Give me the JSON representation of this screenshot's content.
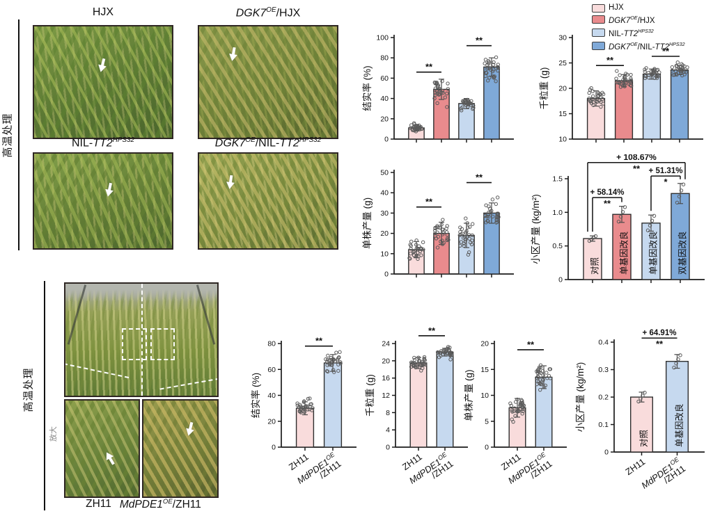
{
  "colors": {
    "pink_light": "#f9dcdc",
    "pink": "#e98b8d",
    "blue_light": "#c6d9ef",
    "blue": "#7fa9d8",
    "bar_border": "#2f2f2f",
    "axis": "#1a1a1a",
    "point_stroke": "#5a5a5a"
  },
  "legend": {
    "items": [
      {
        "color_key": "pink_light",
        "label": [
          {
            "t": "HJX"
          }
        ]
      },
      {
        "color_key": "pink",
        "label": [
          {
            "t": "DGK7",
            "i": 1
          },
          {
            "t": "OE",
            "i": 1,
            "s": 1
          },
          {
            "t": "/HJX"
          }
        ]
      },
      {
        "color_key": "blue_light",
        "label": [
          {
            "t": "NIL-"
          },
          {
            "t": "TT2",
            "i": 1
          },
          {
            "t": "HPS32",
            "i": 1,
            "s": 1
          }
        ]
      },
      {
        "color_key": "blue",
        "label": [
          {
            "t": "DGK7",
            "i": 1
          },
          {
            "t": "OE",
            "i": 1,
            "s": 1
          },
          {
            "t": "/NIL-"
          },
          {
            "t": "TT2",
            "i": 1
          },
          {
            "t": "HPS32",
            "i": 1,
            "s": 1
          }
        ]
      }
    ]
  },
  "top_section": {
    "treatment_label": "高温处理",
    "photo_captions": [
      [
        {
          "t": "HJX"
        }
      ],
      [
        {
          "t": "DGK7",
          "i": 1
        },
        {
          "t": "OE",
          "i": 1,
          "s": 1
        },
        {
          "t": "/HJX"
        }
      ],
      [
        {
          "t": "NIL-"
        },
        {
          "t": "TT2",
          "i": 1
        },
        {
          "t": "HPS32",
          "i": 1,
          "s": 1
        }
      ],
      [
        {
          "t": "DGK7",
          "i": 1
        },
        {
          "t": "OE",
          "i": 1,
          "s": 1
        },
        {
          "t": "/NIL-"
        },
        {
          "t": "TT2",
          "i": 1
        },
        {
          "t": "HPS32",
          "i": 1,
          "s": 1
        }
      ]
    ]
  },
  "bottom_section": {
    "treatment_label": "高温处理",
    "magnify_label": "放大",
    "photo_captions": [
      [
        {
          "t": "ZH11"
        }
      ],
      [
        {
          "t": "MdPDE1",
          "i": 1
        },
        {
          "t": "OE",
          "i": 1,
          "s": 1
        },
        {
          "t": "/ZH11"
        }
      ]
    ]
  },
  "chart_data": [
    {
      "id": "seed-setting-top",
      "type": "bar",
      "title": "",
      "ylabel": "结实率 (%)",
      "ylim": [
        0,
        100
      ],
      "yticks": [
        0,
        20,
        40,
        60,
        80,
        100
      ],
      "ytick_labels": [
        "0",
        "20",
        "40",
        "60",
        "80",
        "100"
      ],
      "categories": [
        "HJX",
        "DGK7OE/HJX",
        "NIL-TT2HPS32",
        "DGK7OE/NIL-TT2HPS32"
      ],
      "values": [
        11,
        49,
        35,
        71
      ],
      "errors": [
        3,
        10,
        5,
        9
      ],
      "bar_colors": [
        "pink_light",
        "pink",
        "blue_light",
        "blue"
      ],
      "n_points": 30,
      "sig": [
        {
          "a": 0,
          "b": 1,
          "stars": "**",
          "level": 66
        },
        {
          "a": 2,
          "b": 3,
          "stars": "**",
          "level": 92
        }
      ]
    },
    {
      "id": "grain-weight-top",
      "type": "bar",
      "ylabel": "千粒重 (g)",
      "ylim": [
        10,
        30
      ],
      "yticks": [
        10,
        15,
        20,
        25,
        30
      ],
      "ytick_labels": [
        "10",
        "15",
        "20",
        "25",
        "30"
      ],
      "categories": [
        "HJX",
        "DGK7OE/HJX",
        "NIL-TT2HPS32",
        "DGK7OE/NIL-TT2HPS32"
      ],
      "values": [
        18,
        21.5,
        22.8,
        23.6
      ],
      "errors": [
        1.5,
        1.2,
        1.0,
        0.9
      ],
      "bar_colors": [
        "pink_light",
        "pink",
        "blue_light",
        "blue"
      ],
      "n_points": 30,
      "sig": [
        {
          "a": 0,
          "b": 1,
          "stars": "**",
          "level": 24.5
        },
        {
          "a": 2,
          "b": 3,
          "stars": "**",
          "level": 26.3
        }
      ]
    },
    {
      "id": "plant-yield-top",
      "type": "bar",
      "ylabel": "单株产量 (g)",
      "ylim": [
        0,
        50
      ],
      "yticks": [
        0,
        10,
        20,
        30,
        40,
        50
      ],
      "ytick_labels": [
        "0",
        "10",
        "20",
        "30",
        "40",
        "50"
      ],
      "categories": [
        "HJX",
        "DGK7OE/HJX",
        "NIL-TT2HPS32",
        "DGK7OE/NIL-TT2HPS32"
      ],
      "values": [
        12,
        20,
        19,
        30
      ],
      "errors": [
        4,
        5.5,
        6,
        5
      ],
      "bar_colors": [
        "pink_light",
        "pink",
        "blue_light",
        "blue"
      ],
      "n_points": 30,
      "sig": [
        {
          "a": 0,
          "b": 1,
          "stars": "**",
          "level": 33
        },
        {
          "a": 2,
          "b": 3,
          "stars": "**",
          "level": 45
        }
      ]
    },
    {
      "id": "plot-yield-top",
      "type": "bar",
      "ylabel": "小区产量 (kg/m²)",
      "ylim": [
        0,
        1.5
      ],
      "yticks": [
        0,
        0.5,
        1.0,
        1.5
      ],
      "ytick_labels": [
        "0",
        "0.5",
        "1.0",
        "1.5"
      ],
      "categories": [
        "HJX",
        "DGK7OE/HJX",
        "NIL-TT2HPS32",
        "DGK7OE/NIL-TT2HPS32"
      ],
      "values": [
        0.61,
        0.97,
        0.84,
        1.28
      ],
      "errors": [
        0.04,
        0.12,
        0.12,
        0.15
      ],
      "bar_colors": [
        "pink_light",
        "pink",
        "blue_light",
        "blue"
      ],
      "bar_labels": [
        "对照",
        "单基因改良",
        "单基因改良",
        "双基因改良"
      ],
      "n_points": 4,
      "ann": [
        {
          "a": 0,
          "b": 1,
          "label": "+ 58.14%",
          "stars": "**",
          "level": 1.22,
          "bracket": true
        },
        {
          "a": 2,
          "b": 3,
          "label": "+ 51.31%",
          "stars": "*",
          "level": 1.54,
          "bracket": true
        },
        {
          "a": 0,
          "b": 3,
          "label": "+ 108.67%",
          "stars": "**",
          "level": 1.74,
          "bracket": true,
          "bold": true,
          "dxa": -7,
          "dxb": 7
        }
      ]
    },
    {
      "id": "seed-setting-bottom",
      "type": "bar",
      "ylabel": "结实率 (%)",
      "ylim": [
        0,
        80
      ],
      "yticks": [
        0,
        20,
        40,
        60,
        80
      ],
      "ytick_labels": [
        "0",
        "20",
        "40",
        "60",
        "80"
      ],
      "categories": [
        "ZH11",
        "MdPDE1OE/ZH11"
      ],
      "values": [
        30,
        65
      ],
      "errors": [
        5,
        6.5
      ],
      "bar_colors": [
        "pink_light",
        "blue_light"
      ],
      "n_points": 32,
      "sig": [
        {
          "a": 0,
          "b": 1,
          "stars": "**",
          "level": 78
        }
      ],
      "xlabels": [
        [
          {
            "t": "ZH11"
          }
        ],
        [
          {
            "t": "MdPDE1",
            "i": 1
          },
          {
            "t": "OE",
            "i": 1,
            "s": 1
          },
          {
            "t": "/ZH11",
            "br": 1
          }
        ]
      ]
    },
    {
      "id": "grain-weight-bottom",
      "type": "bar",
      "ylabel": "千粒重 (g)",
      "ylim": [
        0,
        24
      ],
      "yticks": [
        0,
        4,
        8,
        12,
        16,
        20,
        24
      ],
      "ytick_labels": [
        "0",
        "4",
        "8",
        "12",
        "16",
        "20",
        "24"
      ],
      "categories": [
        "ZH11",
        "MdPDE1OE/ZH11"
      ],
      "values": [
        19.5,
        22
      ],
      "errors": [
        1.3,
        0.9
      ],
      "bar_colors": [
        "pink_light",
        "blue_light"
      ],
      "n_points": 34,
      "sig": [
        {
          "a": 0,
          "b": 1,
          "stars": "**",
          "level": 25.8
        }
      ],
      "xlabels": [
        [
          {
            "t": "ZH11"
          }
        ],
        [
          {
            "t": "MdPDE1",
            "i": 1
          },
          {
            "t": "OE",
            "i": 1,
            "s": 1
          },
          {
            "t": "/ZH11",
            "br": 1
          }
        ]
      ]
    },
    {
      "id": "plant-yield-bottom",
      "type": "bar",
      "ylabel": "单株产量 (g)",
      "ylim": [
        0,
        20
      ],
      "yticks": [
        0,
        5,
        10,
        15,
        20
      ],
      "ytick_labels": [
        "0",
        "5",
        "10",
        "15",
        "20"
      ],
      "categories": [
        "ZH11",
        "MdPDE1OE/ZH11"
      ],
      "values": [
        7.6,
        13.5
      ],
      "errors": [
        1.8,
        2.2
      ],
      "bar_colors": [
        "pink_light",
        "blue_light"
      ],
      "n_points": 34,
      "sig": [
        {
          "a": 0,
          "b": 1,
          "stars": "**",
          "level": 18.8
        }
      ],
      "xlabels": [
        [
          {
            "t": "ZH11"
          }
        ],
        [
          {
            "t": "MdPDE1",
            "i": 1
          },
          {
            "t": "OE",
            "i": 1,
            "s": 1
          },
          {
            "t": "/ZH11",
            "br": 1
          }
        ]
      ]
    },
    {
      "id": "plot-yield-bottom",
      "type": "bar",
      "ylabel": "小区产量 (kg/m²)",
      "ylim": [
        0,
        0.4
      ],
      "yticks": [
        0,
        0.1,
        0.2,
        0.3,
        0.4
      ],
      "ytick_labels": [
        "0",
        "0.1",
        "0.2",
        "0.3",
        "0.4"
      ],
      "categories": [
        "ZH11",
        "MdPDE1OE/ZH11"
      ],
      "values": [
        0.2,
        0.33
      ],
      "errors": [
        0.018,
        0.025
      ],
      "bar_colors": [
        "pink_light",
        "blue_light"
      ],
      "bar_labels": [
        "对照",
        "单基因改良"
      ],
      "n_points": 4,
      "ann": [
        {
          "a": 0,
          "b": 1,
          "label": "+ 64.91%",
          "stars": "**",
          "level": 0.415,
          "bracket": false
        }
      ],
      "xlabels": [
        [
          {
            "t": "ZH11"
          }
        ],
        [
          {
            "t": "MdPDE1",
            "i": 1
          },
          {
            "t": "OE",
            "i": 1,
            "s": 1
          },
          {
            "t": "/ZH11",
            "br": 1
          }
        ]
      ]
    }
  ]
}
